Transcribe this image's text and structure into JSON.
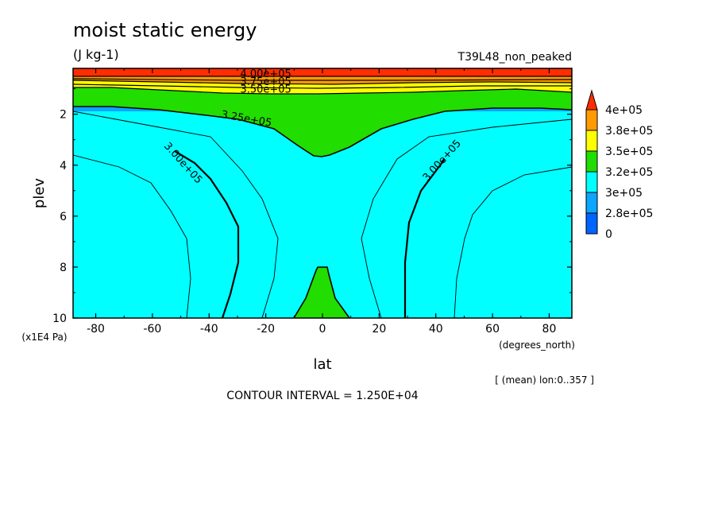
{
  "chart_data": {
    "type": "contour",
    "title": "moist static energy",
    "units": "(J kg-1)",
    "experiment": "T39L48_non_peaked",
    "xlabel": "lat",
    "ylabel": "plev",
    "x_units": "(degrees_north)",
    "y_units": "(x1E4 Pa)",
    "xlim": [
      -88,
      88
    ],
    "ylim": [
      10,
      0.2
    ],
    "x_ticks": [
      "-80",
      "-60",
      "-40",
      "-20",
      "0",
      "20",
      "40",
      "60",
      "80"
    ],
    "y_ticks": [
      "2",
      "4",
      "6",
      "8",
      "10"
    ],
    "averaging_note": "[ (mean) lon:0..357 ]",
    "contour_interval_text": "CONTOUR INTERVAL = 1.250E+04",
    "contour_interval": 12500,
    "colorbar": {
      "labels": [
        "4e+05",
        "3.8e+05",
        "3.5e+05",
        "3.2e+05",
        "3e+05",
        "2.8e+05",
        "0"
      ],
      "colors": [
        "#ff2d00",
        "#ff9a00",
        "#ffff00",
        "#22dd00",
        "#00ffff",
        "#0aa6ff",
        "#0064ff"
      ]
    },
    "contour_labels": [
      {
        "text": "4.00e+05",
        "lat": -20,
        "plev": 0.55
      },
      {
        "text": "3.75e+05",
        "lat": -20,
        "plev": 0.85
      },
      {
        "text": "3.50e+05",
        "lat": -20,
        "plev": 1.15
      },
      {
        "text": "3.25e+05",
        "lat": -27,
        "plev": 2.3
      },
      {
        "text": "3.00e+05",
        "lat": -50,
        "plev": 4.0
      },
      {
        "text": "3.00e+05",
        "lat": 43,
        "plev": 3.9
      }
    ],
    "bands": [
      {
        "range": [
          0,
          287500
        ],
        "color": "#0aa6ff"
      },
      {
        "range": [
          287500,
          300000
        ],
        "color": "#0aa6ff"
      },
      {
        "range": [
          300000,
          325000
        ],
        "color": "#00ffff"
      },
      {
        "range": [
          325000,
          350000
        ],
        "color": "#22dd00"
      },
      {
        "range": [
          350000,
          375000
        ],
        "color": "#ffff00"
      },
      {
        "range": [
          375000,
          400000
        ],
        "color": "#ff9a00"
      },
      {
        "range": [
          400000,
          450000
        ],
        "color": "#ff2d00"
      }
    ],
    "grid": false
  }
}
